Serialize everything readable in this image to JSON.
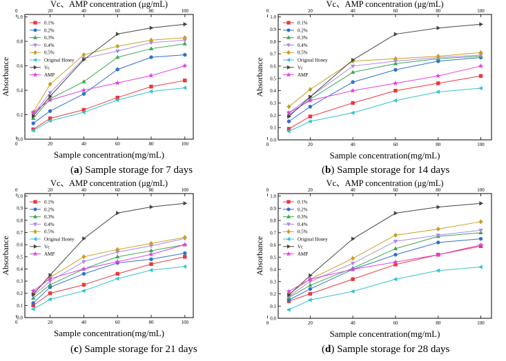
{
  "figure": {
    "top_axis_label": "Vc、AMP concentration (μg/mL)",
    "bottom_axis_label": "Sample concentration(mg/mL)",
    "y_axis_label": "Absorbance"
  },
  "legend_labels": [
    "0.1%",
    "0.2%",
    "0.3%",
    "0.4%",
    "0.5%",
    "Original Honey",
    "Vc",
    "AMP"
  ],
  "colors": {
    "0.1%": "#e8383d",
    "0.2%": "#2f6fcf",
    "0.3%": "#3aa852",
    "0.4%": "#a98ae8",
    "0.5%": "#c9a020",
    "Original Honey": "#33c3cc",
    "Vc": "#454545",
    "AMP": "#e040e0"
  },
  "chart_data": [
    {
      "type": "line",
      "caption_letter": "a",
      "caption_text": " Sample storage for 7 days",
      "x": [
        10,
        20,
        40,
        60,
        80,
        100
      ],
      "x_ticks": [
        0,
        20,
        40,
        60,
        80,
        100
      ],
      "top_x_ticks": [
        0,
        20,
        40,
        60,
        80,
        100
      ],
      "y_ticks": [
        "0.0",
        "0.2",
        "0.4",
        "0.6",
        "0.8",
        "1.0"
      ],
      "xlim": [
        5,
        105
      ],
      "ylim": [
        0,
        1.02
      ],
      "series": [
        {
          "name": "0.1%",
          "values": [
            0.08,
            0.17,
            0.24,
            0.34,
            0.43,
            0.48
          ]
        },
        {
          "name": "0.2%",
          "values": [
            0.13,
            0.23,
            0.37,
            0.57,
            0.67,
            0.69
          ]
        },
        {
          "name": "0.3%",
          "values": [
            0.17,
            0.33,
            0.47,
            0.67,
            0.74,
            0.78
          ]
        },
        {
          "name": "0.4%",
          "values": [
            0.2,
            0.38,
            0.66,
            0.72,
            0.79,
            0.81
          ]
        },
        {
          "name": "0.5%",
          "values": [
            0.22,
            0.45,
            0.69,
            0.76,
            0.81,
            0.83
          ]
        },
        {
          "name": "Original Honey",
          "values": [
            0.07,
            0.15,
            0.22,
            0.32,
            0.39,
            0.42
          ]
        },
        {
          "name": "Vc",
          "values": [
            0.19,
            0.35,
            0.65,
            0.86,
            0.91,
            0.94
          ]
        },
        {
          "name": "AMP",
          "values": [
            0.22,
            0.32,
            0.4,
            0.46,
            0.52,
            0.6
          ]
        }
      ]
    },
    {
      "type": "line",
      "caption_letter": "b",
      "caption_text": " Sample storage for 14 days",
      "x": [
        10,
        20,
        40,
        60,
        80,
        100
      ],
      "x_ticks": [
        0,
        20,
        40,
        60,
        80,
        100
      ],
      "top_x_ticks": [
        0,
        20,
        40,
        60,
        80,
        100
      ],
      "y_ticks": [
        "0.0",
        "0.1",
        "0.2",
        "0.3",
        "0.4",
        "0.5",
        "0.6",
        "0.7",
        "0.8",
        "0.9",
        "1.0"
      ],
      "xlim": [
        5,
        105
      ],
      "ylim": [
        0,
        1.02
      ],
      "series": [
        {
          "name": "0.1%",
          "values": [
            0.09,
            0.19,
            0.3,
            0.4,
            0.46,
            0.52
          ]
        },
        {
          "name": "0.2%",
          "values": [
            0.15,
            0.27,
            0.47,
            0.57,
            0.64,
            0.67
          ]
        },
        {
          "name": "0.3%",
          "values": [
            0.2,
            0.33,
            0.55,
            0.62,
            0.66,
            0.68
          ]
        },
        {
          "name": "0.4%",
          "values": [
            0.22,
            0.35,
            0.6,
            0.64,
            0.67,
            0.69
          ]
        },
        {
          "name": "0.5%",
          "values": [
            0.27,
            0.41,
            0.64,
            0.66,
            0.68,
            0.71
          ]
        },
        {
          "name": "Original Honey",
          "values": [
            0.07,
            0.15,
            0.22,
            0.32,
            0.39,
            0.42
          ]
        },
        {
          "name": "Vc",
          "values": [
            0.19,
            0.35,
            0.65,
            0.86,
            0.91,
            0.94
          ]
        },
        {
          "name": "AMP",
          "values": [
            0.22,
            0.32,
            0.4,
            0.46,
            0.52,
            0.6
          ]
        }
      ]
    },
    {
      "type": "line",
      "caption_letter": "c",
      "caption_text": " Sample storage for 21 days",
      "x": [
        10,
        20,
        40,
        60,
        80,
        100
      ],
      "x_ticks": [
        0,
        20,
        40,
        60,
        80,
        100
      ],
      "top_x_ticks": [
        0,
        20,
        40,
        60,
        80,
        100
      ],
      "y_ticks": [
        "0.0",
        "0.1",
        "0.2",
        "0.3",
        "0.4",
        "0.5",
        "0.6",
        "0.7",
        "0.8",
        "0.9",
        "1.0"
      ],
      "xlim": [
        5,
        105
      ],
      "ylim": [
        0,
        1.02
      ],
      "series": [
        {
          "name": "0.1%",
          "values": [
            0.1,
            0.2,
            0.27,
            0.36,
            0.44,
            0.5
          ]
        },
        {
          "name": "0.2%",
          "values": [
            0.12,
            0.25,
            0.36,
            0.45,
            0.48,
            0.53
          ]
        },
        {
          "name": "0.3%",
          "values": [
            0.16,
            0.27,
            0.4,
            0.5,
            0.55,
            0.6
          ]
        },
        {
          "name": "0.4%",
          "values": [
            0.18,
            0.3,
            0.46,
            0.54,
            0.59,
            0.65
          ]
        },
        {
          "name": "0.5%",
          "values": [
            0.2,
            0.33,
            0.5,
            0.56,
            0.61,
            0.66
          ]
        },
        {
          "name": "Original Honey",
          "values": [
            0.07,
            0.15,
            0.22,
            0.32,
            0.39,
            0.42
          ]
        },
        {
          "name": "Vc",
          "values": [
            0.19,
            0.35,
            0.65,
            0.86,
            0.91,
            0.94
          ]
        },
        {
          "name": "AMP",
          "values": [
            0.22,
            0.32,
            0.4,
            0.46,
            0.52,
            0.6
          ]
        }
      ]
    },
    {
      "type": "line",
      "caption_letter": "d",
      "caption_text": " Sample storage for 28 days",
      "x": [
        10,
        20,
        40,
        60,
        80,
        100
      ],
      "x_ticks": [
        0,
        20,
        40,
        60,
        80,
        100
      ],
      "top_x_ticks": [
        0,
        20,
        40,
        60,
        80,
        100
      ],
      "y_ticks": [
        "0.0",
        "0.1",
        "0.2",
        "0.3",
        "0.4",
        "0.5",
        "0.6",
        "0.7",
        "0.8",
        "0.9",
        "1.0"
      ],
      "xlim": [
        5,
        105
      ],
      "ylim": [
        0,
        1.02
      ],
      "series": [
        {
          "name": "0.1%",
          "values": [
            0.14,
            0.2,
            0.32,
            0.44,
            0.52,
            0.59
          ]
        },
        {
          "name": "0.2%",
          "values": [
            0.15,
            0.24,
            0.4,
            0.52,
            0.62,
            0.65
          ]
        },
        {
          "name": "0.3%",
          "values": [
            0.17,
            0.27,
            0.41,
            0.57,
            0.67,
            0.7
          ]
        },
        {
          "name": "0.4%",
          "values": [
            0.18,
            0.3,
            0.45,
            0.63,
            0.68,
            0.72
          ]
        },
        {
          "name": "0.5%",
          "values": [
            0.2,
            0.32,
            0.49,
            0.68,
            0.73,
            0.79
          ]
        },
        {
          "name": "Original Honey",
          "values": [
            0.07,
            0.15,
            0.22,
            0.32,
            0.39,
            0.42
          ]
        },
        {
          "name": "Vc",
          "values": [
            0.19,
            0.35,
            0.65,
            0.86,
            0.91,
            0.94
          ]
        },
        {
          "name": "AMP",
          "values": [
            0.22,
            0.32,
            0.4,
            0.46,
            0.52,
            0.6
          ]
        }
      ]
    }
  ]
}
